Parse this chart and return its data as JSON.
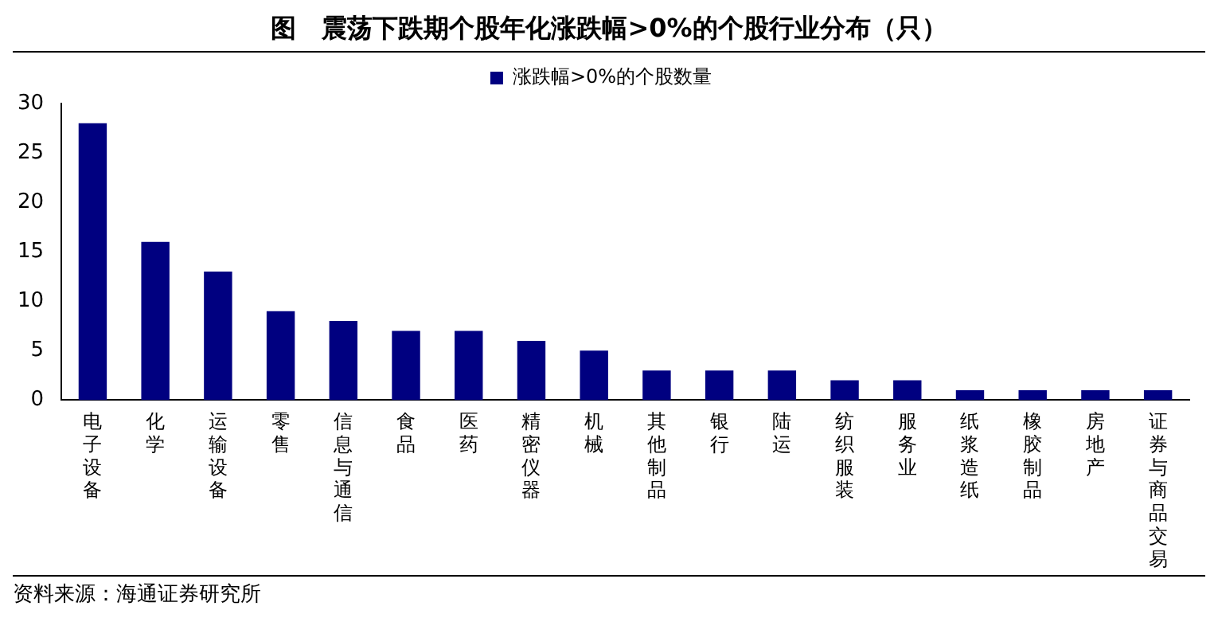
{
  "chart_data": {
    "type": "bar",
    "title": "图　震荡下跌期个股年化涨跌幅>0%的个股行业分布（只）",
    "categories": [
      "电子设备",
      "化学",
      "运输设备",
      "零售",
      "信息与通信",
      "食品",
      "医药",
      "精密仪器",
      "机械",
      "其他制品",
      "银行",
      "陆运",
      "纺织服装",
      "服务业",
      "纸浆造纸",
      "橡胶制品",
      "房地产",
      "证券与商品交易"
    ],
    "series": [
      {
        "name": "涨跌幅>0%的个股数量",
        "color": "#000080",
        "values": [
          28,
          16,
          13,
          9,
          8,
          7,
          7,
          6,
          5,
          3,
          3,
          3,
          2,
          2,
          1,
          1,
          1,
          1
        ]
      }
    ],
    "ylim": [
      0,
      30
    ],
    "yticks": [
      0,
      5,
      10,
      15,
      20,
      25,
      30
    ],
    "grid": false,
    "legend": "top",
    "annotations": [
      "资料来源：海通证券研究所"
    ]
  }
}
